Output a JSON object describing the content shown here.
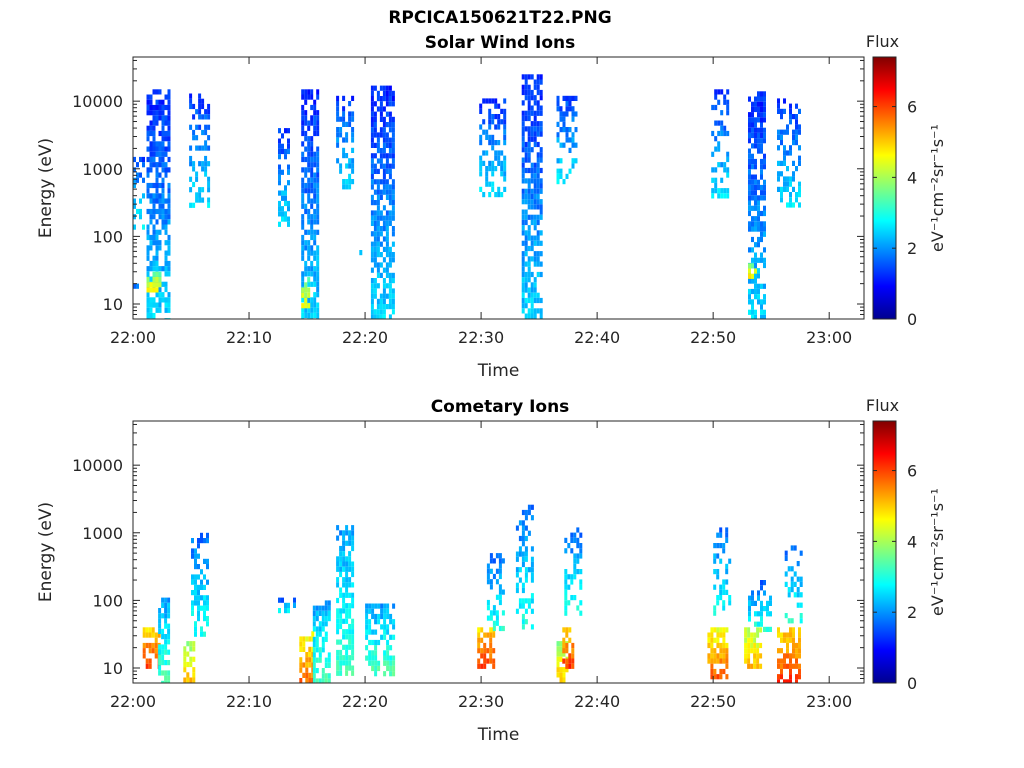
{
  "figure_title": "RPCICA150621T22.PNG",
  "colorbar": {
    "label": "Flux",
    "unit_text": "eV⁻¹cm⁻²sr⁻¹s⁻¹",
    "ticks": [
      "0",
      "2",
      "4",
      "6"
    ],
    "range": [
      0,
      7.4
    ],
    "colormap": "jet"
  },
  "chart_data": [
    {
      "type": "heatmap",
      "title": "Solar Wind Ions",
      "xlabel": "Time",
      "ylabel": "Energy (eV)",
      "yscale": "log",
      "x_ticks": [
        "22:00",
        "22:10",
        "22:20",
        "22:30",
        "22:40",
        "22:50",
        "23:00"
      ],
      "y_ticks": [
        "10",
        "100",
        "1000",
        "10000"
      ],
      "xlim": [
        "22:00",
        "23:03"
      ],
      "ylim": [
        6,
        45000
      ],
      "clusters": [
        {
          "t_start": "22:00:00",
          "t_end": "22:00:30",
          "e_min": 10,
          "e_max": 20,
          "flux": 2.8
        },
        {
          "t_start": "22:00:00",
          "t_end": "22:01:00",
          "e_min": 150,
          "e_max": 1500,
          "flux": 2.3
        },
        {
          "t_start": "22:01:10",
          "t_end": "22:03:00",
          "e_min": 6,
          "e_max": 15000,
          "flux": 2.1
        },
        {
          "t_start": "22:01:10",
          "t_end": "22:02:20",
          "e_min": 15,
          "e_max": 30,
          "flux": 4.5
        },
        {
          "t_start": "22:04:50",
          "t_end": "22:06:30",
          "e_min": 300,
          "e_max": 13000,
          "flux": 2.2
        },
        {
          "t_start": "22:12:30",
          "t_end": "22:13:30",
          "e_min": 150,
          "e_max": 4000,
          "flux": 2.2
        },
        {
          "t_start": "22:14:30",
          "t_end": "22:16:00",
          "e_min": 6,
          "e_max": 15000,
          "flux": 2.1
        },
        {
          "t_start": "22:14:30",
          "t_end": "22:15:10",
          "e_min": 10,
          "e_max": 25,
          "flux": 4.3
        },
        {
          "t_start": "22:17:30",
          "t_end": "22:19:00",
          "e_min": 500,
          "e_max": 12000,
          "flux": 2.2
        },
        {
          "t_start": "22:19:30",
          "t_end": "22:20:00",
          "e_min": 55,
          "e_max": 75,
          "flux": 2.6
        },
        {
          "t_start": "22:20:30",
          "t_end": "22:22:30",
          "e_min": 6,
          "e_max": 17000,
          "flux": 2.1
        },
        {
          "t_start": "22:29:50",
          "t_end": "22:32:00",
          "e_min": 400,
          "e_max": 11000,
          "flux": 2.2
        },
        {
          "t_start": "22:33:30",
          "t_end": "22:35:10",
          "e_min": 6,
          "e_max": 25000,
          "flux": 2.1
        },
        {
          "t_start": "22:36:30",
          "t_end": "22:38:10",
          "e_min": 600,
          "e_max": 12000,
          "flux": 2.3
        },
        {
          "t_start": "22:49:50",
          "t_end": "22:51:20",
          "e_min": 400,
          "e_max": 15000,
          "flux": 2.2
        },
        {
          "t_start": "22:53:00",
          "t_end": "22:54:30",
          "e_min": 6,
          "e_max": 14000,
          "flux": 2.1
        },
        {
          "t_start": "22:53:00",
          "t_end": "22:53:40",
          "e_min": 25,
          "e_max": 40,
          "flux": 4.6
        },
        {
          "t_start": "22:55:30",
          "t_end": "22:57:30",
          "e_min": 300,
          "e_max": 11000,
          "flux": 2.2
        }
      ]
    },
    {
      "type": "heatmap",
      "title": "Cometary Ions",
      "xlabel": "Time",
      "ylabel": "Energy (eV)",
      "yscale": "log",
      "x_ticks": [
        "22:00",
        "22:10",
        "22:20",
        "22:30",
        "22:40",
        "22:50",
        "23:00"
      ],
      "y_ticks": [
        "10",
        "100",
        "1000",
        "10000"
      ],
      "xlim": [
        "22:00",
        "23:03"
      ],
      "ylim": [
        6,
        45000
      ],
      "clusters": [
        {
          "t_start": "22:00:50",
          "t_end": "22:02:10",
          "e_min": 10,
          "e_max": 40,
          "flux": 5.8
        },
        {
          "t_start": "22:02:10",
          "t_end": "22:03:00",
          "e_min": 6,
          "e_max": 110,
          "flux": 3.0
        },
        {
          "t_start": "22:04:20",
          "t_end": "22:05:20",
          "e_min": 6,
          "e_max": 25,
          "flux": 4.8
        },
        {
          "t_start": "22:05:00",
          "t_end": "22:06:30",
          "e_min": 30,
          "e_max": 1000,
          "flux": 2.6
        },
        {
          "t_start": "22:12:30",
          "t_end": "22:14:00",
          "e_min": 70,
          "e_max": 110,
          "flux": 2.6
        },
        {
          "t_start": "22:14:20",
          "t_end": "22:15:30",
          "e_min": 6,
          "e_max": 35,
          "flux": 5.4
        },
        {
          "t_start": "22:15:30",
          "t_end": "22:17:00",
          "e_min": 6,
          "e_max": 100,
          "flux": 3.0
        },
        {
          "t_start": "22:17:30",
          "t_end": "22:19:00",
          "e_min": 8,
          "e_max": 1300,
          "flux": 2.9
        },
        {
          "t_start": "22:20:00",
          "t_end": "22:22:30",
          "e_min": 8,
          "e_max": 90,
          "flux": 3.0
        },
        {
          "t_start": "22:29:40",
          "t_end": "22:31:00",
          "e_min": 10,
          "e_max": 40,
          "flux": 5.8
        },
        {
          "t_start": "22:30:30",
          "t_end": "22:32:00",
          "e_min": 40,
          "e_max": 500,
          "flux": 2.6
        },
        {
          "t_start": "22:33:00",
          "t_end": "22:34:30",
          "e_min": 40,
          "e_max": 2600,
          "flux": 2.6
        },
        {
          "t_start": "22:36:30",
          "t_end": "22:37:20",
          "e_min": 6,
          "e_max": 25,
          "flux": 4.8
        },
        {
          "t_start": "22:37:00",
          "t_end": "22:38:00",
          "e_min": 10,
          "e_max": 40,
          "flux": 5.8
        },
        {
          "t_start": "22:37:10",
          "t_end": "22:38:30",
          "e_min": 60,
          "e_max": 1200,
          "flux": 2.6
        },
        {
          "t_start": "22:49:30",
          "t_end": "22:51:10",
          "e_min": 8,
          "e_max": 40,
          "flux": 5.4
        },
        {
          "t_start": "22:50:00",
          "t_end": "22:51:30",
          "e_min": 60,
          "e_max": 1200,
          "flux": 2.6
        },
        {
          "t_start": "22:52:40",
          "t_end": "22:54:10",
          "e_min": 10,
          "e_max": 40,
          "flux": 4.9
        },
        {
          "t_start": "22:53:00",
          "t_end": "22:55:00",
          "e_min": 40,
          "e_max": 200,
          "flux": 2.6
        },
        {
          "t_start": "22:55:30",
          "t_end": "22:57:20",
          "e_min": 6,
          "e_max": 40,
          "flux": 5.8
        },
        {
          "t_start": "22:56:10",
          "t_end": "22:57:40",
          "e_min": 50,
          "e_max": 650,
          "flux": 2.6
        }
      ]
    }
  ]
}
